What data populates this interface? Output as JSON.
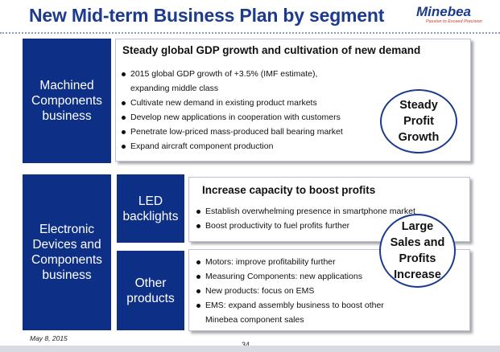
{
  "title": "New Mid-term Business Plan by segment",
  "logo": {
    "name": "Minebea",
    "tagline": "Passion to Exceed Precision"
  },
  "segments": {
    "machined": {
      "label": "Machined Components business",
      "heading": "Steady global GDP growth and cultivation of new demand",
      "bullets": [
        "2015 global GDP growth of +3.5% (IMF estimate),",
        "expanding middle class",
        "Cultivate new demand in existing product markets",
        "Develop new applications in cooperation with customers",
        "Penetrate low-priced mass-produced ball bearing market",
        "Expand aircraft component production"
      ],
      "badge": "Steady Profit Growth"
    },
    "electronic": {
      "label": "Electronic Devices and Components business",
      "led": {
        "label": "LED backlights",
        "heading": "Increase capacity to boost profits",
        "bullets": [
          "Establish overwhelming presence in smartphone market",
          "Boost productivity to fuel profits further"
        ]
      },
      "other": {
        "label": "Other products",
        "bullets": [
          "Motors: improve profitability further",
          "Measuring Components: new applications",
          "New products: focus on EMS",
          "EMS: expand assembly business to boost other",
          "Minebea component sales"
        ]
      },
      "badge": "Large Sales and Profits Increase"
    }
  },
  "footer": {
    "date": "May 8, 2015",
    "page": "34"
  },
  "colors": {
    "brand_blue": "#0e2f86",
    "title_blue": "#1c3a8e",
    "accent_red": "#c0392b"
  }
}
